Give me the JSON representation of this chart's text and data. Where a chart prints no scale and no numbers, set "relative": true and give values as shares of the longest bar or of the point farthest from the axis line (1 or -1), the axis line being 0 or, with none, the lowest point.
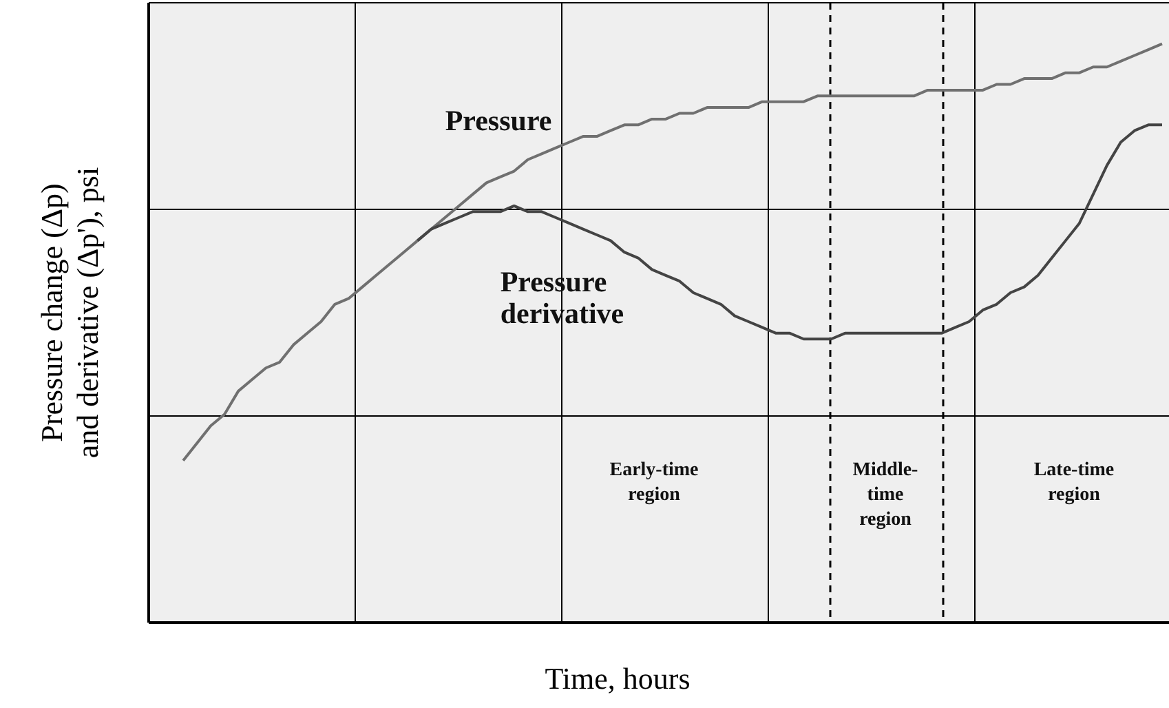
{
  "chart_data": {
    "type": "line",
    "relative": true,
    "xlabel": "Time, hours",
    "ylabel": "Pressure change (Δp) and derivative (Δp'), psi",
    "grid": true,
    "categories": [
      null,
      null,
      null,
      null,
      null,
      null,
      null,
      null,
      null,
      null,
      null,
      null,
      null,
      null,
      null,
      null,
      null,
      null,
      null,
      null,
      null,
      null,
      null,
      null,
      null,
      null,
      null,
      null,
      null,
      null,
      null,
      null,
      null,
      null,
      null,
      null,
      null,
      null,
      null,
      null,
      null,
      null,
      null,
      null,
      null,
      null,
      null,
      null,
      null,
      null,
      null,
      null,
      null,
      null,
      null,
      null,
      null,
      null,
      null,
      null,
      null,
      null,
      null,
      null,
      null,
      null,
      null,
      null,
      null,
      null,
      null,
      null,
      null,
      null
    ],
    "series": [
      {
        "name": "Pressure",
        "color": "#707070",
        "values": [
          null,
          null,
          0.28,
          0.31,
          0.34,
          0.36,
          0.4,
          0.42,
          0.44,
          0.45,
          0.48,
          0.5,
          0.52,
          0.55,
          0.56,
          0.58,
          0.6,
          0.62,
          0.64,
          0.66,
          0.68,
          0.7,
          0.72,
          0.74,
          0.76,
          0.77,
          0.78,
          0.8,
          0.81,
          0.82,
          0.83,
          0.84,
          0.84,
          0.85,
          0.86,
          0.86,
          0.87,
          0.87,
          0.88,
          0.88,
          0.89,
          0.89,
          0.89,
          0.89,
          0.9,
          0.9,
          0.9,
          0.9,
          0.91,
          0.91,
          0.91,
          0.91,
          0.91,
          0.91,
          0.91,
          0.91,
          0.92,
          0.92,
          0.92,
          0.92,
          0.92,
          0.93,
          0.93,
          0.94,
          0.94,
          0.94,
          0.95,
          0.95,
          0.96,
          0.96,
          0.97,
          0.98,
          0.99,
          1
        ]
      },
      {
        "name": "Pressure derivative",
        "color": "#444444",
        "values": [
          null,
          null,
          null,
          null,
          null,
          null,
          null,
          null,
          null,
          null,
          null,
          null,
          null,
          null,
          null,
          null,
          null,
          null,
          null,
          0.66,
          0.68,
          0.69,
          0.7,
          0.71,
          0.71,
          0.71,
          0.72,
          0.71,
          0.71,
          0.7,
          0.69,
          0.68,
          0.67,
          0.66,
          0.64,
          0.63,
          0.61,
          0.6,
          0.59,
          0.57,
          0.56,
          0.55,
          0.53,
          0.52,
          0.51,
          0.5,
          0.5,
          0.49,
          0.49,
          0.49,
          0.5,
          0.5,
          0.5,
          0.5,
          0.5,
          0.5,
          0.5,
          0.5,
          0.51,
          0.52,
          0.54,
          0.55,
          0.57,
          0.58,
          0.6,
          0.63,
          0.66,
          0.69,
          0.74,
          0.79,
          0.83,
          0.85,
          0.86,
          0.86
        ]
      }
    ],
    "annotations": [
      "Early-time\nregion",
      "Middle-\ntime\nregion",
      "Late-time\nregion"
    ]
  }
}
